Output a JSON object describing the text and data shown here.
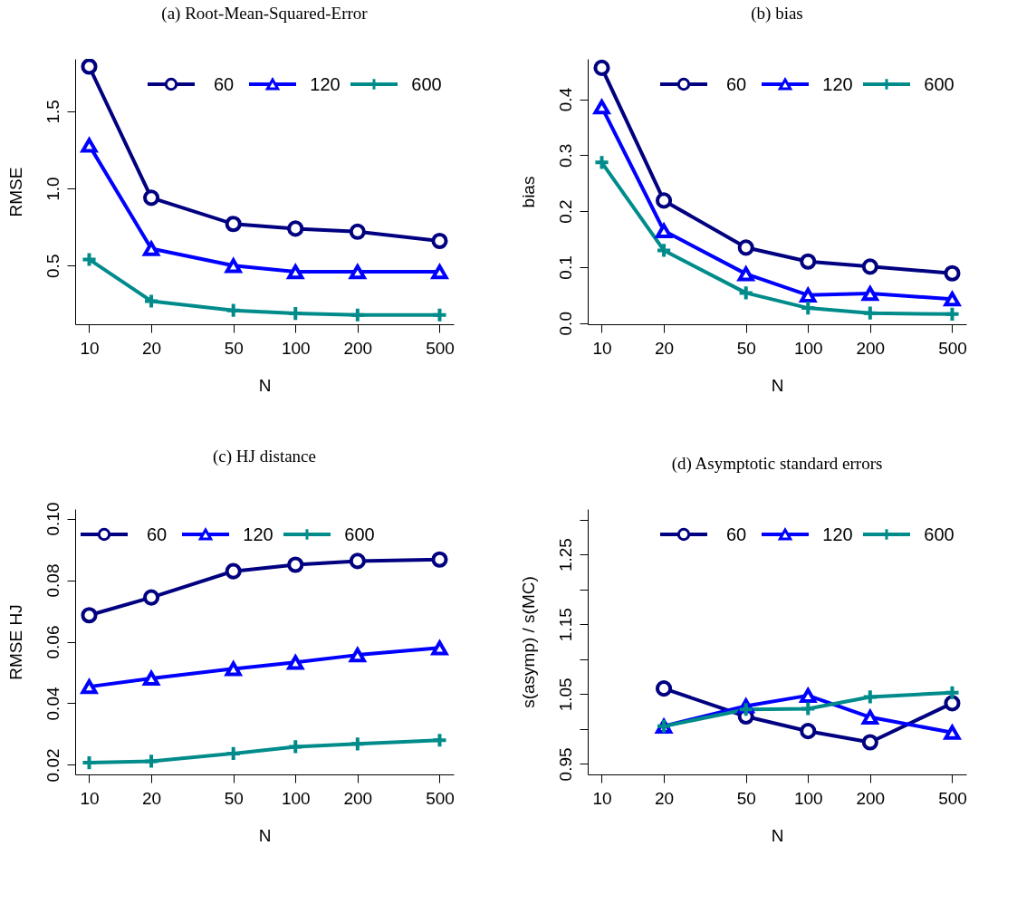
{
  "chart_data": [
    {
      "type": "line",
      "title": "(a) Root-Mean-Squared-Error",
      "xlabel": "N",
      "ylabel": "RMSE",
      "x": [
        10,
        20,
        50,
        100,
        200,
        500
      ],
      "log": "x",
      "xlim": [
        8.55,
        585
      ],
      "xticks": [
        10,
        20,
        50,
        100,
        200,
        500
      ],
      "ylim": [
        0.12,
        1.84
      ],
      "yticks": [
        0.5,
        {
          "value": 1.0,
          "label": "1.0"
        },
        1.5
      ],
      "legend": "top right",
      "grid": false,
      "series": [
        {
          "name": "60",
          "color": "#000080",
          "marker": "circle",
          "values": [
            1.79,
            0.94,
            0.77,
            0.74,
            0.72,
            0.66
          ]
        },
        {
          "name": "120",
          "color": "#0000ff",
          "marker": "triangle",
          "values": [
            1.28,
            0.61,
            0.5,
            0.46,
            0.46,
            0.46
          ]
        },
        {
          "name": "600",
          "color": "#008b8b",
          "marker": "cross",
          "values": [
            0.54,
            0.27,
            0.21,
            0.19,
            0.18,
            0.18
          ]
        }
      ]
    },
    {
      "type": "line",
      "title": "(b) bias",
      "xlabel": "N",
      "ylabel": "bias",
      "x": [
        10,
        20,
        50,
        100,
        200,
        500
      ],
      "log": "x",
      "xlim": [
        8.55,
        585
      ],
      "xticks": [
        10,
        20,
        50,
        100,
        200,
        500
      ],
      "ylim": [
        -0.002,
        0.472
      ],
      "yticks": [
        {
          "value": 0.0,
          "label": "0.0"
        },
        0.1,
        0.2,
        0.3,
        0.4
      ],
      "legend": "top right",
      "grid": false,
      "series": [
        {
          "name": "60",
          "color": "#000080",
          "marker": "circle",
          "values": [
            0.456,
            0.219,
            0.135,
            0.11,
            0.101,
            0.089
          ]
        },
        {
          "name": "120",
          "color": "#0000ff",
          "marker": "triangle",
          "values": [
            0.386,
            0.165,
            0.088,
            0.05,
            0.053,
            0.043
          ]
        },
        {
          "name": "600",
          "color": "#008b8b",
          "marker": "cross",
          "values": [
            0.287,
            0.13,
            0.054,
            0.027,
            0.018,
            0.016
          ]
        }
      ]
    },
    {
      "type": "line",
      "title": "(c) HJ distance",
      "xlabel": "N",
      "ylabel": "RMSE HJ",
      "x": [
        10,
        20,
        50,
        100,
        200,
        500
      ],
      "log": "x",
      "xlim": [
        8.55,
        585
      ],
      "xticks": [
        10,
        20,
        50,
        100,
        200,
        500
      ],
      "ylim": [
        0.0169,
        0.1031
      ],
      "yticks": [
        0.02,
        0.04,
        0.06,
        0.08,
        {
          "value": 0.1,
          "label": "0.10"
        }
      ],
      "legend": "top left",
      "grid": false,
      "series": [
        {
          "name": "60",
          "color": "#000080",
          "marker": "circle",
          "values": [
            0.0686,
            0.0744,
            0.0829,
            0.085,
            0.0862,
            0.0867
          ]
        },
        {
          "name": "120",
          "color": "#0000ff",
          "marker": "triangle",
          "values": [
            0.0454,
            0.0481,
            0.0512,
            0.0533,
            0.0557,
            0.058
          ]
        },
        {
          "name": "600",
          "color": "#008b8b",
          "marker": "cross",
          "values": [
            0.0207,
            0.0212,
            0.0237,
            0.0259,
            0.0268,
            0.028
          ]
        }
      ]
    },
    {
      "type": "line",
      "title": "(d) Asymptotic standard errors",
      "xlabel": "N",
      "ylabel": "s(asymp) / s(MC)",
      "x": [
        20,
        50,
        100,
        200,
        500
      ],
      "log": "x",
      "xlim": [
        8.55,
        585
      ],
      "xticks": [
        10,
        20,
        50,
        100,
        200,
        500
      ],
      "ylim": [
        0.935,
        1.315
      ],
      "yticks": [
        0.95,
        {
          "value": 1.0,
          "label": null
        },
        1.05,
        {
          "value": 1.1,
          "label": null
        },
        1.15,
        {
          "value": 1.2,
          "label": null
        },
        1.25,
        {
          "value": 1.3,
          "label": null
        }
      ],
      "legend": "top right",
      "grid": false,
      "series": [
        {
          "name": "60",
          "color": "#000080",
          "marker": "circle",
          "values": [
            1.058,
            1.018,
            0.997,
            0.981,
            1.037
          ]
        },
        {
          "name": "120",
          "color": "#0000ff",
          "marker": "triangle",
          "values": [
            1.004,
            1.033,
            1.048,
            1.017,
            0.995
          ]
        },
        {
          "name": "600",
          "color": "#008b8b",
          "marker": "cross",
          "values": [
            1.004,
            1.028,
            1.029,
            1.046,
            1.052
          ]
        }
      ]
    }
  ]
}
